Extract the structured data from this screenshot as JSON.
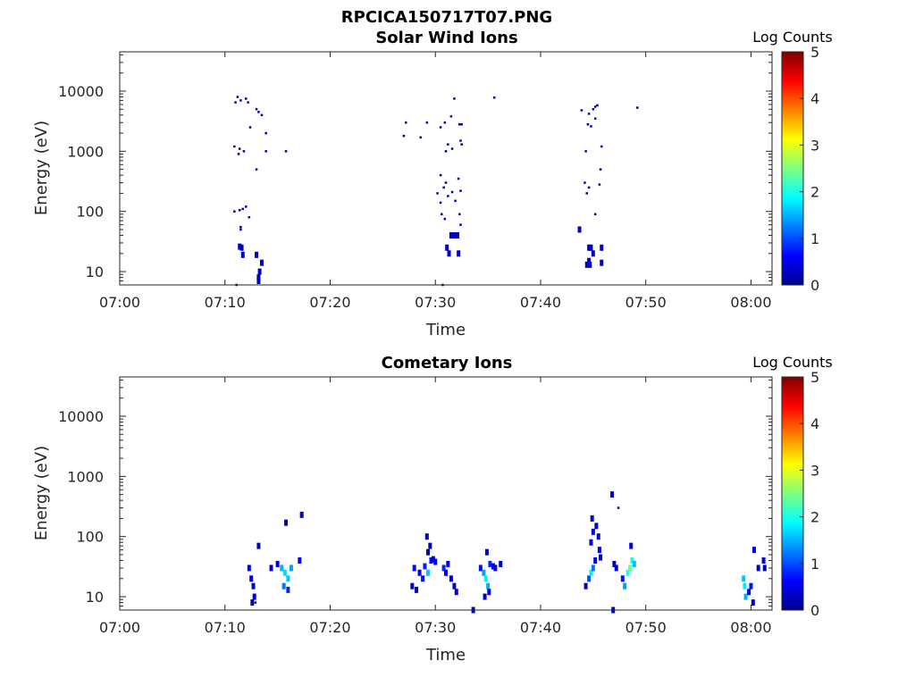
{
  "figure_title": "RPCICA150717T07.PNG",
  "chart_data": [
    {
      "type": "heatmap",
      "title": "Solar Wind Ions",
      "xlabel": "Time",
      "ylabel": "Energy (eV)",
      "x_ticks": [
        "07:00",
        "07:10",
        "07:20",
        "07:30",
        "07:40",
        "07:50",
        "08:00"
      ],
      "y_ticks": [
        "10",
        "100",
        "1000",
        "10000"
      ],
      "y_scale": "log",
      "xlim_minutes": [
        0,
        62
      ],
      "ylim": [
        6,
        45000
      ],
      "colorbar": {
        "label": "Log Counts",
        "ticks": [
          "0",
          "1",
          "2",
          "3",
          "4",
          "5"
        ],
        "range": [
          0,
          5
        ],
        "colormap": "jet"
      },
      "points": [
        [
          11.1,
          6,
          0.2
        ],
        [
          11.2,
          8000,
          0.2
        ],
        [
          11.5,
          7000,
          0.2
        ],
        [
          11.0,
          6500,
          0.2
        ],
        [
          12.0,
          7500,
          0.2
        ],
        [
          12.2,
          6500,
          0.2
        ],
        [
          13.0,
          5000,
          0.2
        ],
        [
          13.2,
          4500,
          0.2
        ],
        [
          13.5,
          4000,
          0.2
        ],
        [
          12.4,
          2500,
          0.2
        ],
        [
          13.9,
          2000,
          0.2
        ],
        [
          10.9,
          1200,
          0.2
        ],
        [
          11.4,
          1100,
          0.2
        ],
        [
          11.8,
          1000,
          0.2
        ],
        [
          11.3,
          900,
          0.2
        ],
        [
          13.0,
          500,
          0.2
        ],
        [
          13.9,
          1000,
          0.2
        ],
        [
          15.8,
          1000,
          0.2
        ],
        [
          10.9,
          100,
          0.2
        ],
        [
          11.4,
          105,
          0.2
        ],
        [
          11.7,
          110,
          0.2
        ],
        [
          12.0,
          120,
          0.2
        ],
        [
          12.3,
          80,
          0.2
        ],
        [
          11.5,
          55,
          0.2
        ],
        [
          11.5,
          50,
          0.2
        ],
        [
          11.4,
          26,
          0.3
        ],
        [
          11.6,
          25,
          0.3
        ],
        [
          11.7,
          19,
          0.3
        ],
        [
          13.0,
          19,
          0.3
        ],
        [
          13.5,
          14,
          0.3
        ],
        [
          13.3,
          10,
          0.3
        ],
        [
          13.2,
          8,
          0.3
        ],
        [
          13.2,
          7,
          0.3
        ],
        [
          27.2,
          3000,
          0.2
        ],
        [
          27.0,
          1800,
          0.2
        ],
        [
          28.6,
          1700,
          0.2
        ],
        [
          29.2,
          3000,
          0.2
        ],
        [
          30.5,
          2500,
          0.2
        ],
        [
          30.9,
          3000,
          0.2
        ],
        [
          31.5,
          3800,
          0.2
        ],
        [
          31.8,
          7500,
          0.2
        ],
        [
          32.3,
          2800,
          0.2
        ],
        [
          32.5,
          2800,
          0.2
        ],
        [
          31.2,
          1300,
          0.2
        ],
        [
          31.0,
          1000,
          0.2
        ],
        [
          31.6,
          1100,
          0.2
        ],
        [
          32.4,
          1500,
          0.2
        ],
        [
          32.5,
          1300,
          0.2
        ],
        [
          35.6,
          7800,
          0.2
        ],
        [
          30.5,
          400,
          0.2
        ],
        [
          31.0,
          300,
          0.2
        ],
        [
          30.8,
          250,
          0.2
        ],
        [
          31.2,
          180,
          0.2
        ],
        [
          32.2,
          350,
          0.2
        ],
        [
          32.4,
          220,
          0.2
        ],
        [
          30.2,
          200,
          0.2
        ],
        [
          30.5,
          140,
          0.2
        ],
        [
          31.6,
          210,
          0.2
        ],
        [
          31.9,
          150,
          0.2
        ],
        [
          30.6,
          90,
          0.2
        ],
        [
          30.9,
          75,
          0.2
        ],
        [
          32.3,
          90,
          0.2
        ],
        [
          32.4,
          60,
          0.2
        ],
        [
          31.8,
          40,
          0.3
        ],
        [
          32.1,
          40,
          0.3
        ],
        [
          31.5,
          40,
          0.3
        ],
        [
          31.1,
          25,
          0.3
        ],
        [
          31.3,
          20,
          0.3
        ],
        [
          32.2,
          20,
          0.3
        ],
        [
          30.7,
          6,
          0.2
        ],
        [
          43.9,
          4800,
          0.2
        ],
        [
          45.0,
          5000,
          0.2
        ],
        [
          45.2,
          5500,
          0.2
        ],
        [
          44.6,
          4200,
          0.2
        ],
        [
          45.4,
          5800,
          0.2
        ],
        [
          49.2,
          5300,
          0.2
        ],
        [
          45.2,
          3500,
          0.2
        ],
        [
          44.5,
          2800,
          0.2
        ],
        [
          44.8,
          2600,
          0.2
        ],
        [
          45.8,
          1200,
          0.2
        ],
        [
          44.3,
          1000,
          0.2
        ],
        [
          45.7,
          500,
          0.2
        ],
        [
          44.2,
          300,
          0.2
        ],
        [
          44.6,
          250,
          0.2
        ],
        [
          45.6,
          280,
          0.2
        ],
        [
          44.4,
          200,
          0.2
        ],
        [
          45.2,
          90,
          0.2
        ],
        [
          43.7,
          50,
          0.3
        ],
        [
          44.6,
          25,
          0.3
        ],
        [
          44.8,
          25,
          0.3
        ],
        [
          45.0,
          20,
          0.3
        ],
        [
          45.8,
          25,
          0.3
        ],
        [
          44.6,
          15,
          0.4
        ],
        [
          44.4,
          13,
          0.4
        ],
        [
          44.7,
          13,
          0.4
        ],
        [
          45.8,
          14,
          0.3
        ]
      ]
    },
    {
      "type": "heatmap",
      "title": "Cometary Ions",
      "xlabel": "Time",
      "ylabel": "Energy (eV)",
      "x_ticks": [
        "07:00",
        "07:10",
        "07:20",
        "07:30",
        "07:40",
        "07:50",
        "08:00"
      ],
      "y_ticks": [
        "10",
        "100",
        "1000",
        "10000"
      ],
      "y_scale": "log",
      "xlim_minutes": [
        0,
        62
      ],
      "ylim": [
        6,
        45000
      ],
      "colorbar": {
        "label": "Log Counts",
        "ticks": [
          "0",
          "1",
          "2",
          "3",
          "4",
          "5"
        ],
        "range": [
          0,
          5
        ],
        "colormap": "jet"
      },
      "points": [
        [
          12.3,
          30,
          0.6
        ],
        [
          12.5,
          20,
          0.5
        ],
        [
          12.7,
          15,
          0.5
        ],
        [
          12.8,
          10,
          0.4
        ],
        [
          12.9,
          8,
          0.2
        ],
        [
          12.6,
          8,
          0.3
        ],
        [
          13.2,
          70,
          0.3
        ],
        [
          14.4,
          30,
          0.4
        ],
        [
          15.0,
          35,
          0.5
        ],
        [
          15.4,
          30,
          1.5
        ],
        [
          15.7,
          25,
          1.7
        ],
        [
          16.0,
          20,
          1.6
        ],
        [
          16.3,
          30,
          1.4
        ],
        [
          15.6,
          15,
          1.2
        ],
        [
          16.0,
          13,
          0.8
        ],
        [
          15.8,
          170,
          0.3
        ],
        [
          17.1,
          40,
          0.5
        ],
        [
          17.3,
          230,
          0.3
        ],
        [
          28.0,
          30,
          0.7
        ],
        [
          28.5,
          25,
          0.6
        ],
        [
          29.0,
          32,
          0.8
        ],
        [
          29.3,
          25,
          1.6
        ],
        [
          28.8,
          20,
          0.7
        ],
        [
          29.6,
          40,
          0.6
        ],
        [
          29.8,
          42,
          0.5
        ],
        [
          30.0,
          38,
          0.5
        ],
        [
          29.2,
          100,
          0.3
        ],
        [
          29.5,
          70,
          0.3
        ],
        [
          29.3,
          55,
          0.3
        ],
        [
          30.8,
          30,
          0.8
        ],
        [
          31.0,
          25,
          0.6
        ],
        [
          31.2,
          35,
          0.5
        ],
        [
          31.5,
          20,
          0.4
        ],
        [
          31.8,
          15,
          0.3
        ],
        [
          32.0,
          12,
          0.3
        ],
        [
          27.8,
          15,
          0.4
        ],
        [
          28.2,
          13,
          0.4
        ],
        [
          34.3,
          30,
          0.7
        ],
        [
          34.6,
          25,
          1.4
        ],
        [
          34.8,
          20,
          1.8
        ],
        [
          35.0,
          15,
          1.5
        ],
        [
          35.2,
          35,
          0.8
        ],
        [
          35.5,
          32,
          0.6
        ],
        [
          35.7,
          30,
          0.5
        ],
        [
          34.9,
          55,
          0.4
        ],
        [
          35.1,
          12,
          0.6
        ],
        [
          34.7,
          10,
          0.4
        ],
        [
          36.2,
          35,
          0.4
        ],
        [
          33.6,
          6,
          0.3
        ],
        [
          44.3,
          15,
          0.4
        ],
        [
          44.6,
          20,
          1.0
        ],
        [
          44.8,
          25,
          1.8
        ],
        [
          45.0,
          30,
          1.2
        ],
        [
          45.2,
          40,
          0.5
        ],
        [
          44.8,
          80,
          0.4
        ],
        [
          45.0,
          120,
          0.5
        ],
        [
          44.9,
          200,
          0.4
        ],
        [
          45.3,
          150,
          0.4
        ],
        [
          45.5,
          100,
          0.5
        ],
        [
          45.6,
          60,
          0.5
        ],
        [
          45.7,
          45,
          0.4
        ],
        [
          46.8,
          500,
          0.3
        ],
        [
          47.4,
          300,
          0.2
        ],
        [
          47.2,
          30,
          0.4
        ],
        [
          47.8,
          20,
          0.7
        ],
        [
          48.0,
          15,
          1.4
        ],
        [
          48.3,
          25,
          2.0
        ],
        [
          48.5,
          30,
          2.4
        ],
        [
          48.7,
          40,
          2.0
        ],
        [
          48.9,
          35,
          1.5
        ],
        [
          48.6,
          70,
          0.5
        ],
        [
          46.9,
          6,
          0.3
        ],
        [
          47.0,
          35,
          0.3
        ],
        [
          59.3,
          20,
          1.6
        ],
        [
          59.4,
          15,
          1.8
        ],
        [
          59.5,
          10,
          1.5
        ],
        [
          59.8,
          12,
          0.6
        ],
        [
          60.0,
          15,
          0.7
        ],
        [
          60.3,
          60,
          0.5
        ],
        [
          60.7,
          30,
          0.4
        ],
        [
          61.2,
          40,
          0.5
        ],
        [
          61.3,
          30,
          0.3
        ],
        [
          60.2,
          8,
          0.4
        ]
      ]
    }
  ]
}
